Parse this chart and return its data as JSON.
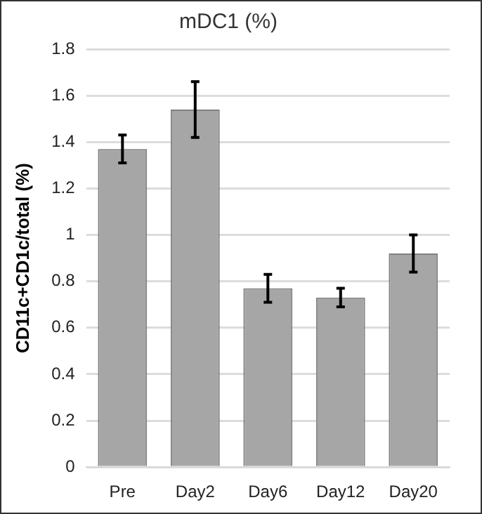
{
  "chart_data": {
    "type": "bar",
    "title": "mDC1 (%)",
    "ylabel": "CD11c+CD1c/total (%)",
    "categories": [
      "Pre",
      "Day2",
      "Day6",
      "Day12",
      "Day20"
    ],
    "values": [
      1.37,
      1.54,
      0.77,
      0.73,
      0.92
    ],
    "errors": [
      0.06,
      0.12,
      0.06,
      0.04,
      0.08
    ],
    "color": "#a6a6a6",
    "ylim": [
      0,
      1.8
    ],
    "yticks": [
      0,
      0.2,
      0.4,
      0.6,
      0.8,
      1,
      1.2,
      1.4,
      1.6,
      1.8
    ],
    "grid": "y",
    "legend": false
  }
}
